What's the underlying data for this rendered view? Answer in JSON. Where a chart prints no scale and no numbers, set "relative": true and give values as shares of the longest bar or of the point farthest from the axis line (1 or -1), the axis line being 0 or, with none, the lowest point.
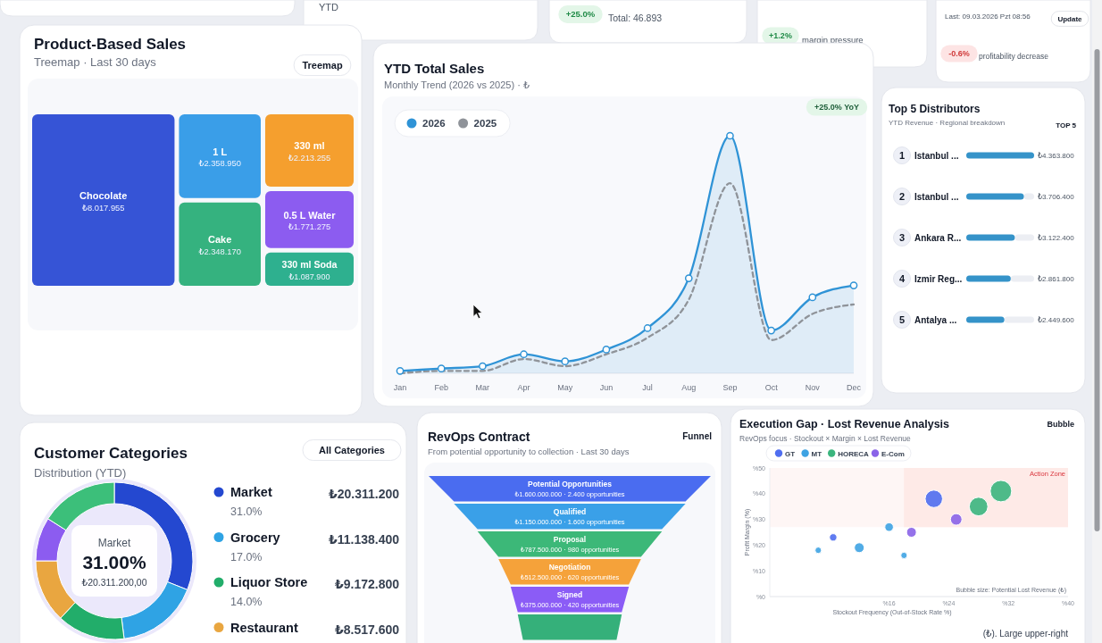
{
  "chart_data": [
    {
      "type": "other",
      "annotations": [
        "YTD",
        "+25.0%",
        "Total: 46.893",
        "+1.2%",
        "margin pressure",
        "-0.6%",
        "profitability decrease",
        "Last: 09.03.2026 Pzt 08:56",
        "Update"
      ]
    },
    {
      "type": "other",
      "title": "Product-Based Sales",
      "subtitle": "Treemap · Last 30 days",
      "categories": [
        "Chocolate",
        "1 L",
        "Cake",
        "330 ml",
        "0.5 L Water",
        "330 ml Soda"
      ],
      "values": [
        8017955,
        2358950,
        2348170,
        2213255,
        1771275,
        1087900
      ],
      "value_labels": [
        "₺8.017.955",
        "₺2.358.950",
        "₺2.348.170",
        "₺2.213.255",
        "₺1.771.275",
        "₺1.087.900"
      ],
      "colors": [
        "#3654d6",
        "#3a9ee8",
        "#35b27f",
        "#f59f2e",
        "#8c5cf0",
        "#2eb08f"
      ],
      "annotations": [
        "Treemap"
      ]
    },
    {
      "type": "line",
      "title": "YTD Total Sales",
      "subtitle": "Monthly Trend (2026 vs 2025) · ₺",
      "relative": true,
      "categories": [
        "Jan",
        "Feb",
        "Mar",
        "Apr",
        "May",
        "Jun",
        "Jul",
        "Aug",
        "Sep",
        "Oct",
        "Nov",
        "Dec"
      ],
      "series": [
        {
          "name": "2026",
          "type": "area",
          "color": "#2f93d6",
          "values": [
            0.01,
            0.02,
            0.03,
            0.08,
            0.05,
            0.1,
            0.19,
            0.4,
            1,
            0.18,
            0.32,
            0.37
          ]
        },
        {
          "name": "2025",
          "color": "#8f9399",
          "line_style": "dashed",
          "marker": "none",
          "values": [
            0,
            0.01,
            0.01,
            0.06,
            0.03,
            0.08,
            0.15,
            0.31,
            0.8,
            0.14,
            0.25,
            0.29
          ]
        }
      ],
      "marker": "circle",
      "line_style": "solid",
      "legend": "top left",
      "annotations": [
        "+25.0% YoY"
      ]
    },
    {
      "type": "bar",
      "orientation": "horizontal",
      "title": "Top 5 Distributors",
      "subtitle": "YTD Revenue · Regional breakdown",
      "categories": [
        "Istanbul ...",
        "Istanbul ...",
        "Ankara R...",
        "Izmir Reg...",
        "Antalya ..."
      ],
      "values": [
        4363800,
        3706400,
        3122400,
        2861800,
        2449600
      ],
      "value_labels": [
        "₺4.363.800",
        "₺3.706.400",
        "₺3.122.400",
        "₺2.861.800",
        "₺2.449.600"
      ],
      "color": "#3593c9",
      "xlim": [
        0,
        4363800
      ],
      "tick_labels": "y",
      "annotations": [
        "TOP 5",
        "1",
        "2",
        "3",
        "4",
        "5"
      ]
    },
    {
      "type": "donut",
      "title": "Customer Categories",
      "subtitle": "Distribution (YTD)",
      "categories": [
        "Market",
        "Grocery",
        "Liquor Store",
        "Restaurant",
        null,
        null
      ],
      "values": [
        31,
        17,
        14,
        13,
        9,
        16
      ],
      "value_labels": [
        "31.0%",
        "17.0%",
        "14.0%",
        null,
        null,
        null
      ],
      "colors": [
        "#2448d0",
        "#2fa3e4",
        "#22ad6a",
        "#e9a640",
        "#8c5cf0",
        "#3cbf7a"
      ],
      "legend": "right",
      "annotations": [
        "All Categories",
        "Market",
        "31.00%",
        "₺20.311.200,00",
        "₺20.311.200",
        "₺11.138.400",
        "₺9.172.800",
        "₺8.517.600"
      ]
    },
    {
      "type": "other",
      "title": "RevOps Contract",
      "subtitle": "From potential opportunity to collection · Last 30 days",
      "categories": [
        "Potential Opportunities",
        "Qualified",
        "Proposal",
        "Negotiation",
        "Signed",
        null
      ],
      "values": [
        1600000000,
        1150000000,
        787500000,
        512500000,
        375000000,
        null
      ],
      "value_labels": [
        "₺1.600.000.000 · 2.400 opportunities",
        "₺1.150.000.000 · 1.600 opportunities",
        "₺787.500.000 · 980 opportunities",
        "₺512.500.000 · 620 opportunities",
        "₺375.000.000 · 420 opportunities",
        null
      ],
      "colors": [
        "#4a6cf0",
        "#3aa0e8",
        "#3cb878",
        "#f5a23a",
        "#8b5cf6",
        "#35b07a"
      ],
      "annotations": [
        "Funnel"
      ]
    },
    {
      "type": "bubble",
      "title": "Execution Gap · Lost Revenue Analysis",
      "subtitle": "RevOps focus · Stockout × Margin × Lost Revenue",
      "xlabel": "Stockout Frequency (Out-of-Stock Rate %)",
      "ylabel": "Profit Margin (%)",
      "xlim": [
        0,
        40
      ],
      "ylim": [
        0,
        50
      ],
      "xticks": [
        {
          "value": 16,
          "label": "%16"
        },
        {
          "value": 24,
          "label": "%24"
        },
        {
          "value": 32,
          "label": "%32"
        },
        {
          "value": 40,
          "label": "%40"
        }
      ],
      "yticks": [
        {
          "value": 0,
          "label": "%0"
        },
        {
          "value": 10,
          "label": "%10"
        },
        {
          "value": 20,
          "label": "%20"
        },
        {
          "value": 30,
          "label": "%30"
        },
        {
          "value": 40,
          "label": "%40"
        },
        {
          "value": 50,
          "label": "%50"
        }
      ],
      "legend": "top left",
      "bands": [
        {
          "axis": "x",
          "from": 18,
          "to": 40,
          "label": "Action Zone",
          "color": "#fde6e2"
        },
        {
          "axis": "y",
          "from": 27,
          "to": 50,
          "color": "#fde6e2"
        }
      ],
      "series": [
        {
          "name": "GT",
          "color": "#4f6ef0",
          "x": [
            22,
            8.5
          ],
          "values": [
            38,
            23
          ],
          "sizes": [
            0.66,
            0.12
          ]
        },
        {
          "name": "MT",
          "color": "#3ea3e3",
          "x": [
            16,
            12,
            6.5,
            18
          ],
          "values": [
            27,
            19,
            18,
            16
          ],
          "sizes": [
            0.16,
            0.21,
            0.09,
            0.09
          ]
        },
        {
          "name": "HORECA",
          "color": "#3bb57e",
          "x": [
            31,
            28
          ],
          "values": [
            41,
            35
          ],
          "sizes": [
            1,
            0.75
          ]
        },
        {
          "name": "E-Com",
          "color": "#8a63e8",
          "x": [
            25,
            19
          ],
          "values": [
            30,
            25
          ],
          "sizes": [
            0.29,
            0.21
          ]
        }
      ],
      "annotations": [
        "Bubble",
        "Bubble size: Potential Lost Revenue (₺)",
        "(₺). Large upper-right"
      ]
    }
  ]
}
